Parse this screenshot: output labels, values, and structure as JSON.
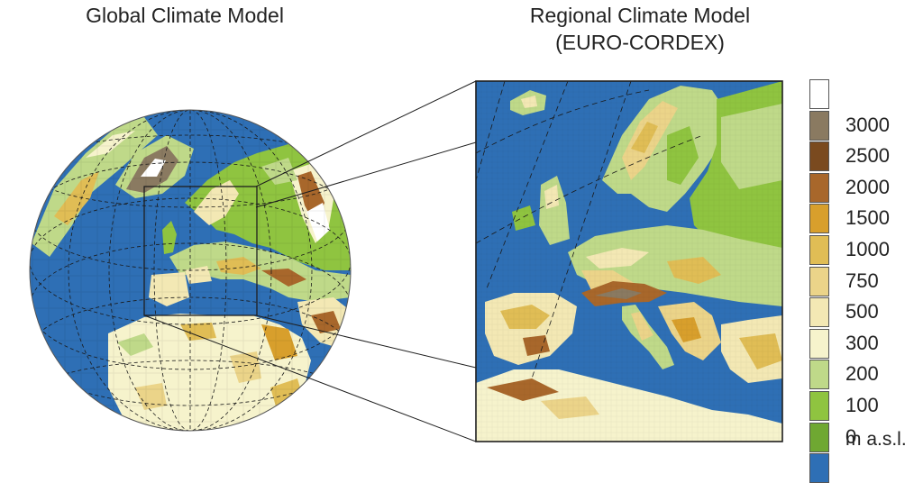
{
  "titles": {
    "global": "Global Climate Model",
    "regional_line1": "Regional Climate Model",
    "regional_line2": "(EURO-CORDEX)"
  },
  "legend": {
    "unit": "m a.s.l.",
    "classes": [
      {
        "label": "",
        "color": "#ffffff"
      },
      {
        "label": "3000",
        "color": "#8a7a61"
      },
      {
        "label": "2500",
        "color": "#7a4a1f"
      },
      {
        "label": "2000",
        "color": "#a8672b"
      },
      {
        "label": "1500",
        "color": "#d89f2c"
      },
      {
        "label": "1000",
        "color": "#e0bd55"
      },
      {
        "label": "750",
        "color": "#ebd489"
      },
      {
        "label": "500",
        "color": "#f3e8b4"
      },
      {
        "label": "300",
        "color": "#f6f3cc"
      },
      {
        "label": "200",
        "color": "#bfd989"
      },
      {
        "label": "100",
        "color": "#8fc440"
      },
      {
        "label": "0",
        "color": "#6fa832"
      },
      {
        "label": "",
        "color": "#2e6fb5"
      }
    ]
  },
  "colors": {
    "ocean": "#2e6fb5",
    "frame": "#222222"
  }
}
